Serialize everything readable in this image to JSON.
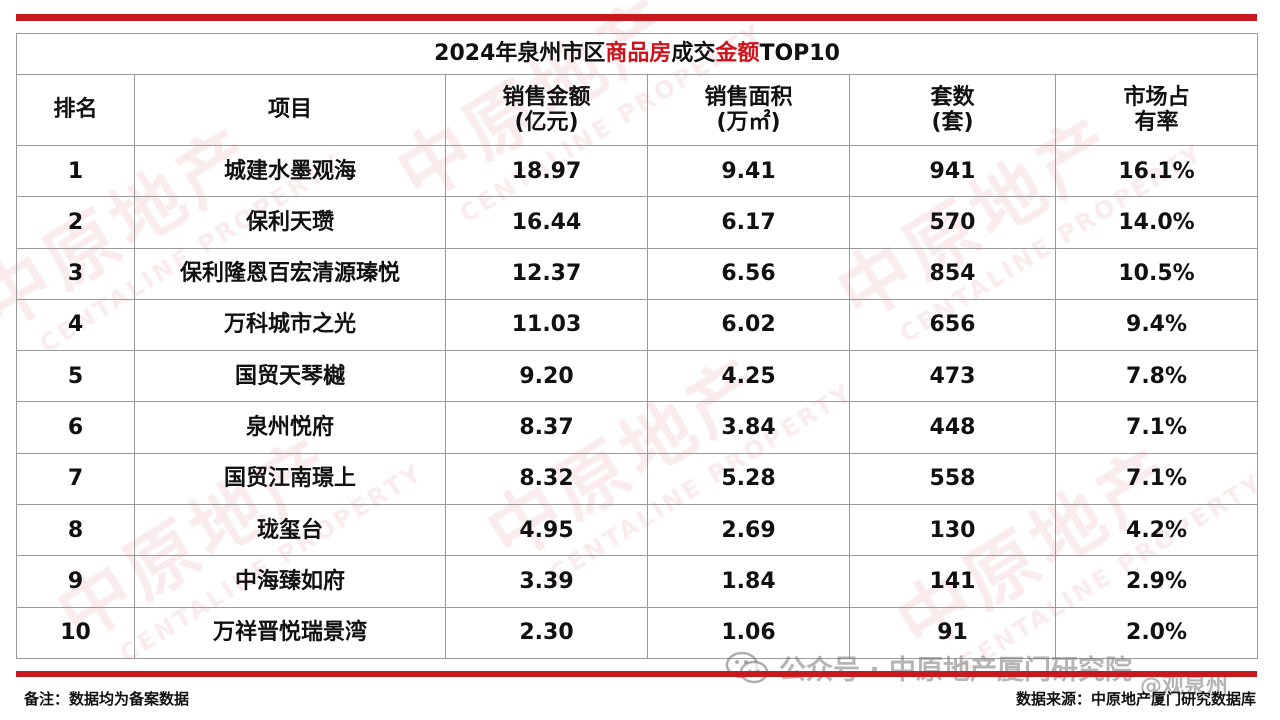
{
  "title": {
    "parts": [
      "2024年泉州市区",
      "商品房",
      "成交",
      "金额",
      "TOP10"
    ]
  },
  "headers": [
    {
      "line1": "排名",
      "line2": ""
    },
    {
      "line1": "项目",
      "line2": ""
    },
    {
      "line1": "销售金额",
      "line2": "(亿元)"
    },
    {
      "line1": "销售面积",
      "line2": "(万㎡)"
    },
    {
      "line1": "套数",
      "line2": "(套)"
    },
    {
      "line1": "市场占",
      "line2": "有率"
    }
  ],
  "rows": [
    {
      "rank": "1",
      "name": "城建水墨观海",
      "amount": "18.97",
      "area": "9.41",
      "units": "941",
      "share": "16.1%"
    },
    {
      "rank": "2",
      "name": "保利天瓒",
      "amount": "16.44",
      "area": "6.17",
      "units": "570",
      "share": "14.0%"
    },
    {
      "rank": "3",
      "name": "保利隆恩百宏清源瑧悦",
      "amount": "12.37",
      "area": "6.56",
      "units": "854",
      "share": "10.5%"
    },
    {
      "rank": "4",
      "name": "万科城市之光",
      "amount": "11.03",
      "area": "6.02",
      "units": "656",
      "share": "9.4%"
    },
    {
      "rank": "5",
      "name": "国贸天琴樾",
      "amount": "9.20",
      "area": "4.25",
      "units": "473",
      "share": "7.8%"
    },
    {
      "rank": "6",
      "name": "泉州悦府",
      "amount": "8.37",
      "area": "3.84",
      "units": "448",
      "share": "7.1%"
    },
    {
      "rank": "7",
      "name": "国贸江南璟上",
      "amount": "8.32",
      "area": "5.28",
      "units": "558",
      "share": "7.1%"
    },
    {
      "rank": "8",
      "name": "珑玺台",
      "amount": "4.95",
      "area": "2.69",
      "units": "130",
      "share": "4.2%"
    },
    {
      "rank": "9",
      "name": "中海臻如府",
      "amount": "3.39",
      "area": "1.84",
      "units": "141",
      "share": "2.9%"
    },
    {
      "rank": "10",
      "name": "万祥晋悦瑞景湾",
      "amount": "2.30",
      "area": "1.06",
      "units": "91",
      "share": "2.0%"
    }
  ],
  "footer": {
    "note": "备注：数据均为备案数据",
    "source": "数据来源：中原地产厦门研究数据库"
  },
  "overlay": {
    "wechat": "公众号 · 中原地产厦门研究院",
    "weibo": "@观泉州"
  },
  "watermark": {
    "cn": "中原地产",
    "en": "CENTALINE PROPERTY"
  },
  "colors": {
    "accent": "#c8191e",
    "highlight_text": "#d0121b"
  }
}
